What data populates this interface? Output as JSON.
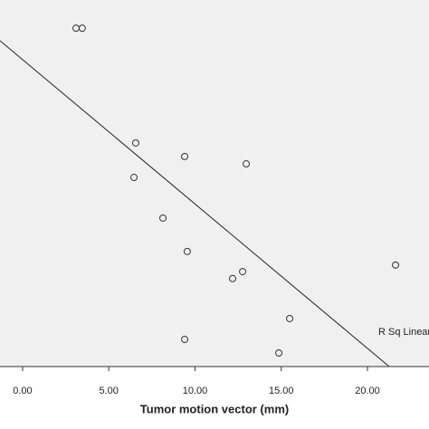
{
  "chart_data": {
    "type": "scatter",
    "x_label": "Tumor motion vector (mm)",
    "annotation": "R Sq Linear",
    "x": [
      3.1,
      3.46,
      6.56,
      9.4,
      12.97,
      6.46,
      8.14,
      9.55,
      12.76,
      12.18,
      21.63,
      15.49,
      9.4,
      14.86
    ],
    "values": [
      92.3,
      92.3,
      61.0,
      57.3,
      55.3,
      51.6,
      40.5,
      31.4,
      25.9,
      24.0,
      27.7,
      13.1,
      7.4,
      3.7
    ],
    "color": "#333333",
    "fit_line": {
      "x": [
        -1.31,
        21.26
      ],
      "y": [
        88.9,
        0
      ]
    },
    "xlim": [
      -1.31,
      23.57
    ],
    "ylim": [
      0,
      100
    ],
    "xticks": [
      {
        "value": 0,
        "label": "0.00"
      },
      {
        "value": 5,
        "label": "5.00"
      },
      {
        "value": 10,
        "label": "10.00"
      },
      {
        "value": 15,
        "label": "15.00"
      },
      {
        "value": 20,
        "label": "20.00"
      }
    ]
  }
}
